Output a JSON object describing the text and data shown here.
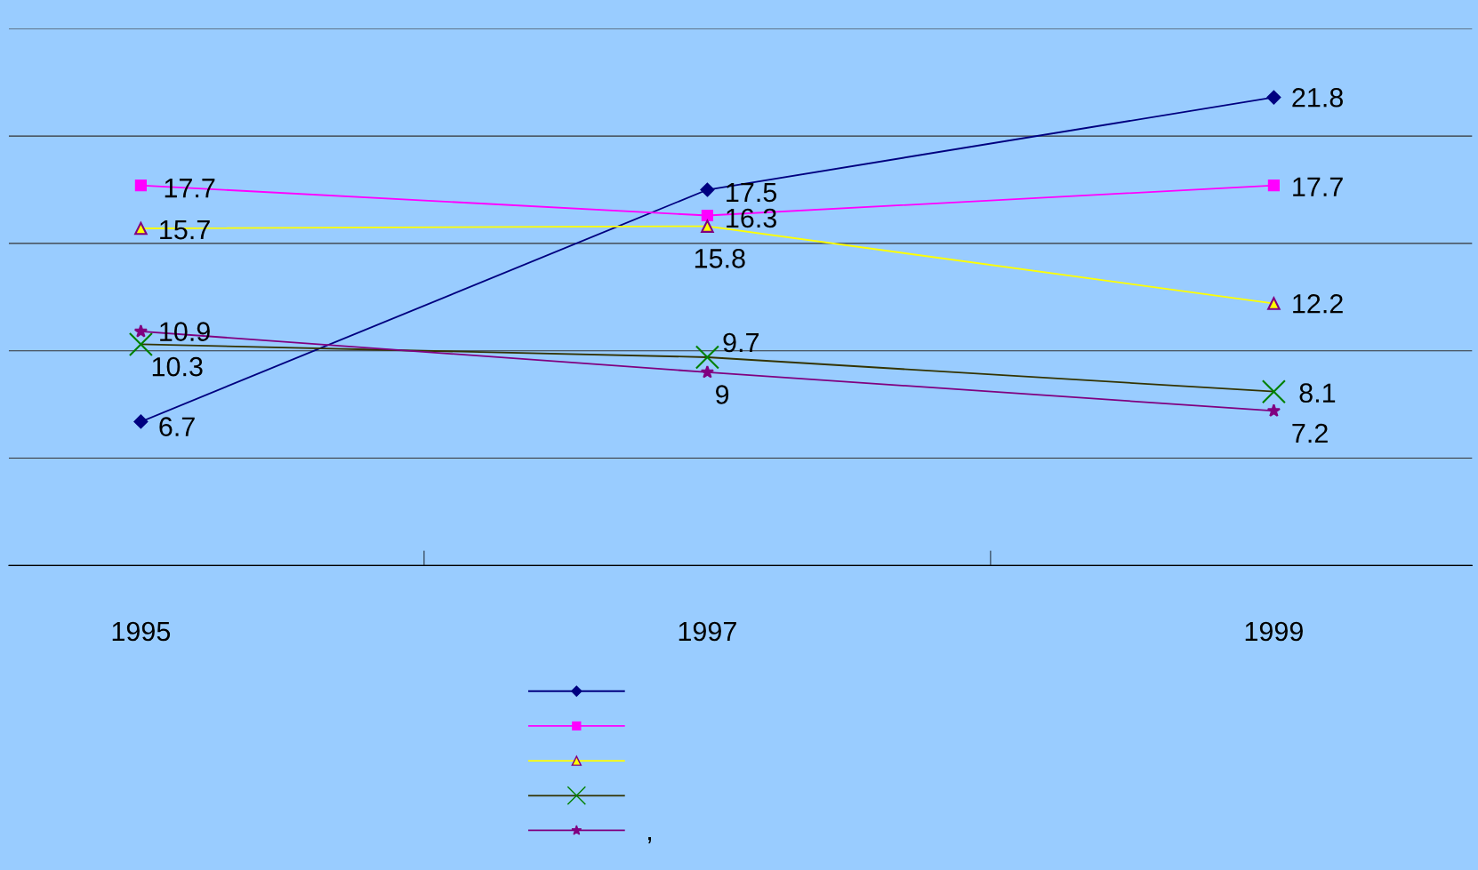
{
  "chart_data": {
    "type": "line",
    "categories": [
      "1995",
      "1997",
      "1999"
    ],
    "series": [
      {
        "color": "#000080",
        "marker": "diamond",
        "values": [
          6.7,
          17.5,
          21.8
        ]
      },
      {
        "color": "#ff00ff",
        "marker": "square",
        "values": [
          17.7,
          16.3,
          17.7
        ]
      },
      {
        "color": "#ffff00",
        "marker": "triangle",
        "values": [
          15.7,
          15.8,
          12.2
        ]
      },
      {
        "color": "#333300",
        "marker": "cross",
        "values": [
          10.3,
          9.7,
          8.1
        ]
      },
      {
        "color": "#800080",
        "marker": "star",
        "name": ",",
        "values": [
          10.9,
          9,
          7.2
        ]
      }
    ],
    "ylim": [
      0,
      25
    ],
    "yticks": [
      {
        "value": 0,
        "label": null
      },
      {
        "value": 5,
        "label": null
      },
      {
        "value": 10,
        "label": null
      },
      {
        "value": 15,
        "label": null
      },
      {
        "value": 20,
        "label": null
      },
      {
        "value": 25,
        "label": null
      }
    ],
    "tick_labels": "x",
    "grid": "y",
    "legend": "bottom",
    "data_labels": true,
    "line_style": "solid"
  }
}
